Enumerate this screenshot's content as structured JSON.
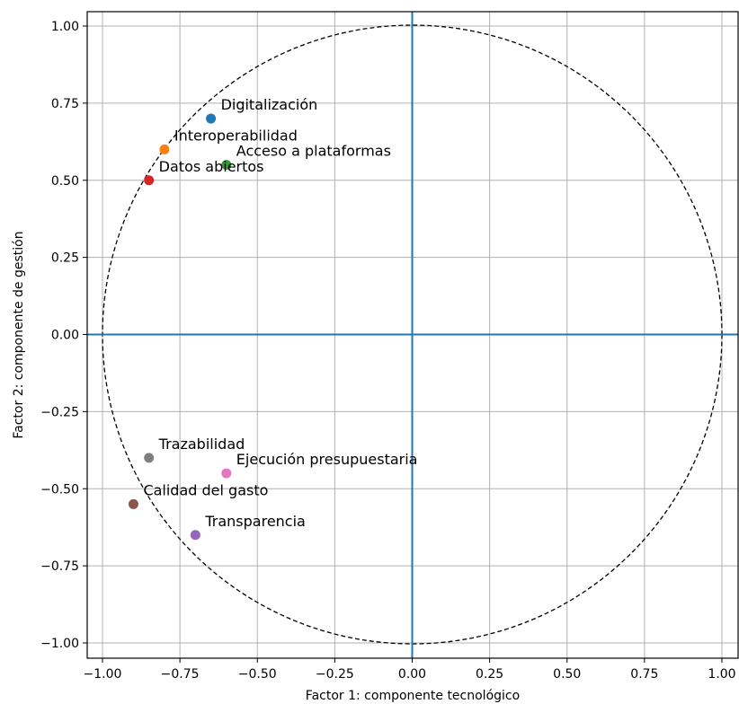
{
  "chart_data": {
    "type": "scatter",
    "title": "",
    "xlabel": "Factor 1: componente tecnológico",
    "ylabel": "Factor 2: componente de gestión",
    "xlim": [
      -1.0,
      1.0
    ],
    "ylim": [
      -1.0,
      1.0
    ],
    "xticks": [
      -1.0,
      -0.75,
      -0.5,
      -0.25,
      0.0,
      0.25,
      0.5,
      0.75,
      1.0
    ],
    "yticks": [
      -1.0,
      -0.75,
      -0.5,
      -0.25,
      0.0,
      0.25,
      0.5,
      0.75,
      1.0
    ],
    "xtick_labels": [
      "−1.00",
      "−0.75",
      "−0.50",
      "−0.25",
      "0.00",
      "0.25",
      "0.50",
      "0.75",
      "1.00"
    ],
    "ytick_labels": [
      "−1.00",
      "−0.75",
      "−0.50",
      "−0.25",
      "0.00",
      "0.25",
      "0.50",
      "0.75",
      "1.00"
    ],
    "grid": true,
    "unit_circle": true,
    "reference_lines": {
      "x": 0,
      "y": 0,
      "color": "#1f77b4"
    },
    "points": [
      {
        "label": "Digitalización",
        "x": -0.65,
        "y": 0.7,
        "color": "#1f77b4"
      },
      {
        "label": "Interoperabilidad",
        "x": -0.8,
        "y": 0.6,
        "color": "#ff7f0e"
      },
      {
        "label": "Acceso a plataformas",
        "x": -0.6,
        "y": 0.55,
        "color": "#2ca02c"
      },
      {
        "label": "Datos abiertos",
        "x": -0.85,
        "y": 0.5,
        "color": "#d62728"
      },
      {
        "label": "Transparencia",
        "x": -0.7,
        "y": -0.65,
        "color": "#9467bd"
      },
      {
        "label": "Calidad del gasto",
        "x": -0.9,
        "y": -0.55,
        "color": "#8c564b"
      },
      {
        "label": "Ejecución presupuestaria",
        "x": -0.6,
        "y": -0.45,
        "color": "#e377c2"
      },
      {
        "label": "Trazabilidad",
        "x": -0.85,
        "y": -0.4,
        "color": "#7f7f7f"
      }
    ]
  }
}
